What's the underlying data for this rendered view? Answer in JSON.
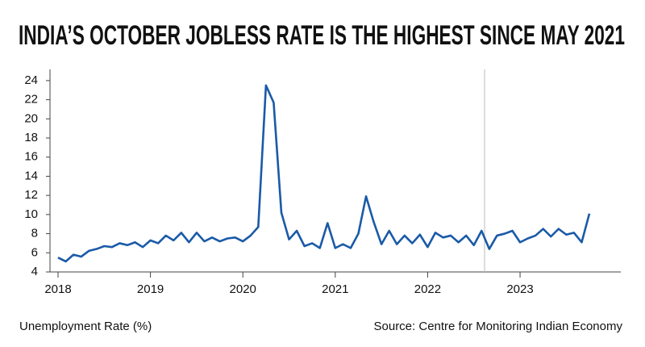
{
  "chart_data": {
    "type": "line",
    "title": "INDIA’S OCTOBER JOBLESS RATE IS THE HIGHEST SINCE MAY 2021",
    "y_label": "Unemployment Rate (%)",
    "source": "Source: Centre for Monitoring Indian Economy",
    "categories": [
      "2018",
      null,
      null,
      null,
      null,
      null,
      null,
      null,
      null,
      null,
      null,
      null,
      "2019",
      null,
      null,
      null,
      null,
      null,
      null,
      null,
      null,
      null,
      null,
      null,
      "2020",
      null,
      null,
      null,
      null,
      null,
      null,
      null,
      null,
      null,
      null,
      null,
      "2021",
      null,
      null,
      null,
      null,
      null,
      null,
      null,
      null,
      null,
      null,
      null,
      "2022",
      null,
      null,
      null,
      null,
      null,
      null,
      null,
      null,
      null,
      null,
      null,
      "2023",
      null,
      null,
      null,
      null,
      null,
      null,
      null,
      null,
      null
    ],
    "values": [
      5.5,
      5.1,
      5.8,
      5.6,
      6.2,
      6.4,
      6.7,
      6.6,
      7.0,
      6.8,
      7.1,
      6.6,
      7.3,
      7.0,
      7.8,
      7.3,
      8.1,
      7.1,
      8.1,
      7.2,
      7.6,
      7.2,
      7.5,
      7.6,
      7.2,
      7.8,
      8.7,
      23.5,
      21.7,
      10.2,
      7.4,
      8.3,
      6.7,
      7.0,
      6.5,
      9.1,
      6.5,
      6.9,
      6.5,
      8.0,
      11.9,
      9.2,
      6.9,
      8.3,
      6.9,
      7.8,
      7.0,
      7.9,
      6.6,
      8.1,
      7.6,
      7.8,
      7.1,
      7.8,
      6.8,
      8.3,
      6.4,
      7.8,
      8.0,
      8.3,
      7.1,
      7.5,
      7.8,
      8.5,
      7.7,
      8.5,
      7.9,
      8.1,
      7.1,
      10.1
    ],
    "color": "#1a5aa8",
    "ylim": [
      4,
      25
    ],
    "yticks": [
      4,
      6,
      8,
      10,
      12,
      14,
      16,
      18,
      20,
      22,
      24
    ]
  }
}
